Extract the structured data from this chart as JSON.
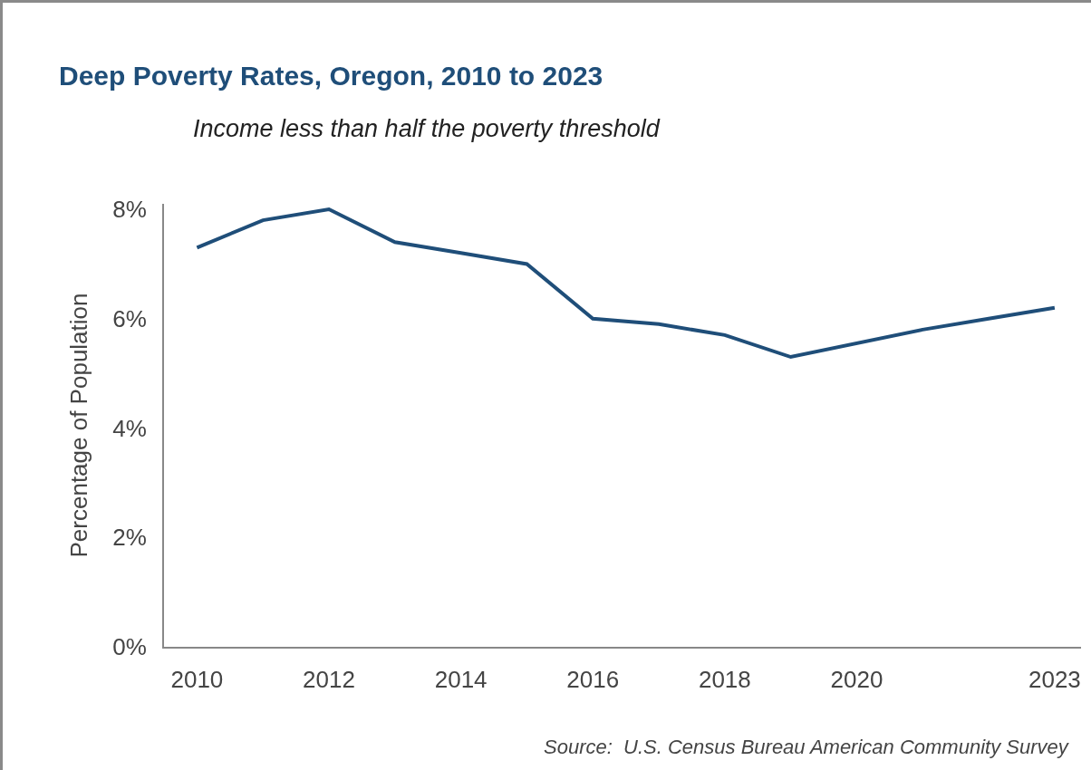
{
  "chart_data": {
    "type": "line",
    "title": "Deep Poverty Rates, Oregon, 2010 to 2023",
    "subtitle": "Income less than half the poverty threshold",
    "ylabel": "Percentage of Population",
    "annotations": [
      "Source:  U.S. Census Bureau American Community Survey"
    ],
    "x": [
      2010,
      2011,
      2012,
      2013,
      2014,
      2015,
      2016,
      2017,
      2018,
      2019,
      2021,
      2022,
      2023
    ],
    "series": [
      {
        "color": "#1f4e79",
        "values": [
          7.3,
          7.8,
          8.0,
          7.4,
          7.2,
          7.0,
          6.0,
          5.9,
          5.7,
          5.3,
          5.8,
          6.0,
          6.2
        ]
      }
    ],
    "xlim": [
      2009.5,
      2023.4
    ],
    "xticks": [
      2010,
      2012,
      2014,
      2016,
      2018,
      2020,
      2023
    ],
    "ylim": [
      0,
      8.1
    ],
    "yticks": [
      {
        "value": 0,
        "label": "0%"
      },
      {
        "value": 2,
        "label": "2%"
      },
      {
        "value": 4,
        "label": "4%"
      },
      {
        "value": 6,
        "label": "6%"
      },
      {
        "value": 8,
        "label": "8%"
      }
    ],
    "grid": false,
    "marker": "none",
    "line_style": "solid"
  }
}
